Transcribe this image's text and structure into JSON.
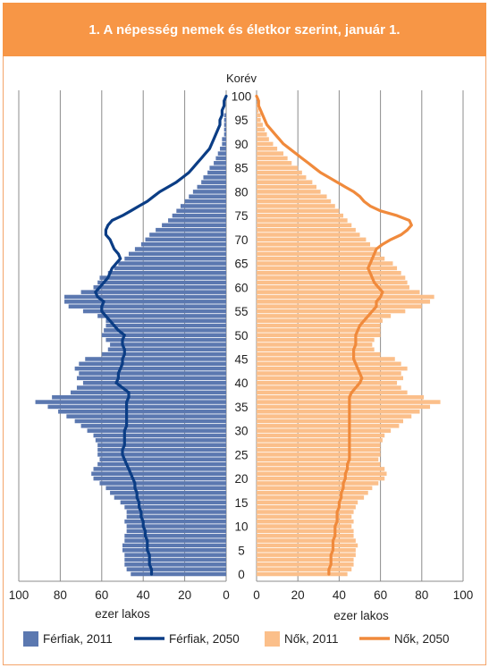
{
  "title": "1. A népesség nemek és életkor szerint, január 1.",
  "colors": {
    "header_bg": "#f79646",
    "men_2011": "#5b78b0",
    "men_2050": "#0b3d85",
    "women_2011": "#fbbf8a",
    "women_2050": "#f08a3c"
  },
  "chart_data": {
    "type": "population-pyramid",
    "age_axis_title": "Korév",
    "age_ticks": [
      0,
      5,
      10,
      15,
      20,
      25,
      30,
      35,
      40,
      45,
      50,
      55,
      60,
      65,
      70,
      75,
      80,
      85,
      90,
      95,
      100
    ],
    "x_ticks_left": [
      100,
      80,
      60,
      40,
      20,
      0
    ],
    "x_ticks_right": [
      0,
      20,
      40,
      60,
      80,
      100
    ],
    "x_axis_label_left": "ezer lakos",
    "x_axis_label_right": "ezer lakos",
    "xlim": [
      0,
      100
    ],
    "ages": [
      0,
      1,
      2,
      3,
      4,
      5,
      6,
      7,
      8,
      9,
      10,
      11,
      12,
      13,
      14,
      15,
      16,
      17,
      18,
      19,
      20,
      21,
      22,
      23,
      24,
      25,
      26,
      27,
      28,
      29,
      30,
      31,
      32,
      33,
      34,
      35,
      36,
      37,
      38,
      39,
      40,
      41,
      42,
      43,
      44,
      45,
      46,
      47,
      48,
      49,
      50,
      51,
      52,
      53,
      54,
      55,
      56,
      57,
      58,
      59,
      60,
      61,
      62,
      63,
      64,
      65,
      66,
      67,
      68,
      69,
      70,
      71,
      72,
      73,
      74,
      75,
      76,
      77,
      78,
      79,
      80,
      81,
      82,
      83,
      84,
      85,
      86,
      87,
      88,
      89,
      90,
      91,
      92,
      93,
      94,
      95,
      96,
      97,
      98,
      99,
      100
    ],
    "series": [
      {
        "name": "Férfiak, 2011",
        "side": "left",
        "kind": "bar",
        "values": [
          46,
          48,
          49,
          49,
          49,
          50,
          50,
          49,
          49,
          48,
          48,
          49,
          48,
          48,
          49,
          51,
          54,
          56,
          58,
          61,
          64,
          65,
          64,
          62,
          61,
          62,
          62,
          62,
          63,
          64,
          67,
          70,
          73,
          77,
          81,
          86,
          92,
          84,
          75,
          72,
          69,
          72,
          71,
          73,
          71,
          68,
          60,
          57,
          56,
          58,
          60,
          59,
          58,
          58,
          62,
          69,
          76,
          78,
          78,
          70,
          64,
          62,
          61,
          57,
          54,
          52,
          49,
          47,
          44,
          41,
          39,
          37,
          34,
          31,
          28,
          26,
          24,
          22,
          20,
          18,
          16,
          14,
          12,
          11,
          9,
          8,
          6,
          5,
          4,
          3,
          2,
          2,
          1,
          1,
          1,
          1,
          1,
          0,
          0,
          0,
          0
        ]
      },
      {
        "name": "Férfiak, 2050",
        "side": "left",
        "kind": "line",
        "values": [
          36,
          36,
          37,
          37,
          37,
          38,
          38,
          38,
          39,
          39,
          40,
          40,
          41,
          41,
          42,
          42,
          43,
          43,
          44,
          44,
          45,
          46,
          47,
          48,
          49,
          50,
          50,
          49,
          49,
          49,
          49,
          48,
          48,
          48,
          48,
          48,
          48,
          47,
          47,
          50,
          53,
          52,
          52,
          51,
          50,
          50,
          49,
          49,
          50,
          50,
          49,
          52,
          54,
          56,
          58,
          60,
          60,
          59,
          62,
          63,
          61,
          59,
          57,
          56,
          55,
          53,
          51,
          52,
          54,
          55,
          56,
          58,
          58,
          57,
          55,
          50,
          46,
          42,
          38,
          35,
          32,
          28,
          24,
          21,
          18,
          16,
          14,
          12,
          10,
          8,
          7,
          6,
          5,
          4,
          3,
          3,
          2,
          2,
          1,
          1,
          0
        ]
      },
      {
        "name": "Nők, 2011",
        "side": "right",
        "kind": "bar",
        "values": [
          44,
          46,
          47,
          47,
          48,
          48,
          49,
          48,
          47,
          47,
          46,
          47,
          46,
          47,
          48,
          49,
          52,
          54,
          56,
          59,
          62,
          63,
          62,
          60,
          59,
          60,
          60,
          60,
          61,
          62,
          65,
          69,
          71,
          75,
          79,
          84,
          89,
          81,
          73,
          70,
          68,
          71,
          70,
          73,
          70,
          67,
          60,
          57,
          56,
          57,
          60,
          60,
          60,
          61,
          65,
          72,
          80,
          84,
          86,
          79,
          74,
          73,
          72,
          70,
          68,
          66,
          62,
          60,
          58,
          55,
          53,
          50,
          48,
          46,
          44,
          42,
          40,
          38,
          36,
          34,
          31,
          29,
          27,
          24,
          22,
          20,
          17,
          15,
          13,
          10,
          8,
          6,
          5,
          4,
          3,
          2,
          2,
          1,
          1,
          0,
          0
        ]
      },
      {
        "name": "Nők, 2050",
        "side": "right",
        "kind": "line",
        "values": [
          35,
          35,
          36,
          36,
          36,
          37,
          37,
          37,
          38,
          38,
          38,
          39,
          39,
          39,
          40,
          40,
          41,
          41,
          42,
          42,
          43,
          43,
          44,
          44,
          45,
          45,
          45,
          45,
          45,
          45,
          45,
          45,
          45,
          45,
          45,
          45,
          45,
          45,
          46,
          48,
          50,
          51,
          50,
          49,
          48,
          47,
          47,
          47,
          48,
          48,
          48,
          49,
          50,
          52,
          54,
          56,
          58,
          58,
          60,
          61,
          59,
          57,
          56,
          55,
          54,
          55,
          56,
          57,
          58,
          61,
          65,
          70,
          73,
          75,
          74,
          68,
          60,
          55,
          52,
          50,
          47,
          43,
          39,
          35,
          31,
          28,
          25,
          22,
          19,
          16,
          13,
          11,
          9,
          7,
          5,
          4,
          3,
          2,
          1,
          1,
          0
        ]
      }
    ]
  }
}
